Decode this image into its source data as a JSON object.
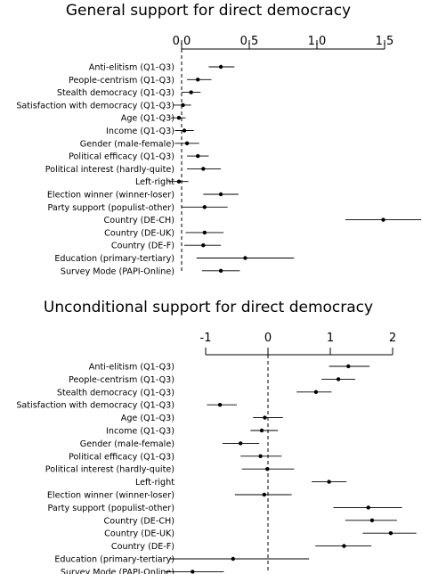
{
  "chart_data": [
    {
      "type": "scatter",
      "title": "General support for direct democracy",
      "xlim": [
        0,
        1.5
      ],
      "xticks": [
        "0.0",
        "0.5",
        "1.0",
        "1.5"
      ],
      "xtick_values": [
        0,
        0.5,
        1.0,
        1.5
      ],
      "reference_line": 0,
      "grid": false,
      "categories": [
        "Anti-elitism (Q1-Q3)",
        "People-centrism (Q1-Q3)",
        "Stealth democracy (Q1-Q3)",
        "Satisfaction with democracy (Q1-Q3)",
        "Age (Q1-Q3)",
        "Income (Q1-Q3)",
        "Gender (male-female)",
        "Political efficacy (Q1-Q3)",
        "Political interest (hardly-quite)",
        "Left-right",
        "Election winner (winner-loser)",
        "Party support (populist-other)",
        "Country (DE-CH)",
        "Country (DE-UK)",
        "Country (DE-F)",
        "Education (primary-tertiary)",
        "Survey Mode (PAPI-Online)"
      ],
      "estimates": [
        0.29,
        0.12,
        0.07,
        0.01,
        -0.02,
        0.02,
        0.04,
        0.12,
        0.16,
        -0.02,
        0.29,
        0.17,
        1.49,
        0.17,
        0.16,
        0.47,
        0.29
      ],
      "ci_low": [
        0.2,
        0.04,
        0.0,
        -0.06,
        -0.08,
        -0.05,
        -0.05,
        0.04,
        0.04,
        -0.1,
        0.16,
        0.0,
        1.21,
        0.03,
        0.02,
        0.11,
        0.15
      ],
      "ci_high": [
        0.39,
        0.22,
        0.14,
        0.07,
        0.03,
        0.09,
        0.13,
        0.2,
        0.29,
        0.05,
        0.42,
        0.34,
        1.77,
        0.31,
        0.29,
        0.83,
        0.43
      ]
    },
    {
      "type": "scatter",
      "title": "Unconditional support for direct democracy",
      "xlim": [
        -1,
        2
      ],
      "xticks": [
        "-1",
        "0",
        "1",
        "2"
      ],
      "xtick_values": [
        -1,
        0,
        1,
        2
      ],
      "reference_line": 0,
      "grid": false,
      "categories": [
        "Anti-elitism (Q1-Q3)",
        "People-centrism (Q1-Q3)",
        "Stealth democracy (Q1-Q3)",
        "Satisfaction with democracy (Q1-Q3)",
        "Age (Q1-Q3)",
        "Income (Q1-Q3)",
        "Gender (male-female)",
        "Political efficacy (Q1-Q3)",
        "Political interest (hardly-quite)",
        "Left-right",
        "Election winner (winner-loser)",
        "Party support (populist-other)",
        "Country (DE-CH)",
        "Country (DE-UK)",
        "Country (DE-F)",
        "Education (primary-tertiary)",
        "Survey Mode (PAPI-Online)"
      ],
      "estimates": [
        1.29,
        1.13,
        0.77,
        -0.77,
        -0.05,
        -0.1,
        -0.44,
        -0.12,
        -0.01,
        0.98,
        -0.06,
        1.61,
        1.67,
        1.97,
        1.22,
        -0.56,
        -1.21
      ],
      "ci_low": [
        0.98,
        0.86,
        0.46,
        -0.98,
        -0.24,
        -0.28,
        -0.73,
        -0.44,
        -0.42,
        0.7,
        -0.53,
        1.05,
        1.24,
        1.52,
        0.76,
        -1.58,
        -1.66
      ],
      "ci_high": [
        1.63,
        1.4,
        1.02,
        -0.5,
        0.24,
        0.16,
        -0.14,
        0.22,
        0.42,
        1.26,
        0.38,
        2.15,
        2.07,
        2.38,
        1.66,
        0.66,
        -0.71
      ]
    }
  ]
}
